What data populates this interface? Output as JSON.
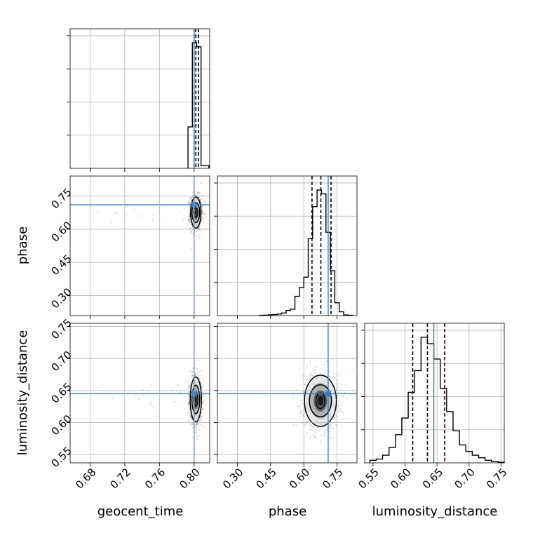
{
  "chart_data": {
    "type": "corner",
    "parameters": [
      {
        "name": "geocent_time",
        "label": "geocent_time",
        "ticks": [
          0.68,
          0.72,
          0.76,
          0.8
        ],
        "tick_labels": [
          "0.68",
          "0.72",
          "0.76",
          "0.80"
        ],
        "range": [
          0.657,
          0.818
        ],
        "truth": 0.8,
        "quantiles": [
          0.8,
          0.802,
          0.805
        ]
      },
      {
        "name": "phase",
        "label": "phase",
        "ticks": [
          0.3,
          0.45,
          0.6,
          0.75
        ],
        "tick_labels": [
          "0.30",
          "0.45",
          "0.60",
          "0.75"
        ],
        "range": [
          0.21,
          0.84
        ],
        "truth": 0.71,
        "quantiles": [
          0.637,
          0.677,
          0.723
        ]
      },
      {
        "name": "luminosity_distance",
        "label": "luminosity_distance",
        "ticks": [
          0.55,
          0.6,
          0.65,
          0.7,
          0.75
        ],
        "tick_labels": [
          "0.55",
          "0.60",
          "0.65",
          "0.70",
          "0.75"
        ],
        "range": [
          0.537,
          0.755
        ],
        "truth": 0.645,
        "quantiles": [
          0.612,
          0.635,
          0.662
        ]
      }
    ],
    "histograms": [
      {
        "parameter": "geocent_time",
        "bin_edges": [
          0.793,
          0.798,
          0.803,
          0.808,
          0.817
        ],
        "counts": [
          0.3,
          0.91,
          0.88,
          0.02
        ]
      },
      {
        "parameter": "phase",
        "bin_edges": [
          0.4,
          0.42,
          0.44,
          0.46,
          0.48,
          0.5,
          0.52,
          0.54,
          0.56,
          0.58,
          0.6,
          0.62,
          0.64,
          0.66,
          0.68,
          0.7,
          0.72,
          0.74,
          0.76,
          0.78,
          0.8,
          0.82
        ],
        "counts": [
          0.002,
          0.004,
          0.006,
          0.008,
          0.012,
          0.02,
          0.04,
          0.05,
          0.15,
          0.22,
          0.3,
          0.6,
          0.85,
          0.98,
          0.95,
          0.65,
          0.35,
          0.1,
          0.03,
          0.005,
          0.002
        ]
      },
      {
        "parameter": "luminosity_distance",
        "bin_edges": [
          0.545,
          0.555,
          0.565,
          0.575,
          0.585,
          0.595,
          0.605,
          0.615,
          0.625,
          0.635,
          0.645,
          0.655,
          0.665,
          0.675,
          0.685,
          0.695,
          0.705,
          0.715,
          0.725,
          0.735,
          0.745,
          0.755
        ],
        "counts": [
          0.02,
          0.03,
          0.06,
          0.12,
          0.22,
          0.35,
          0.55,
          0.72,
          0.98,
          0.93,
          0.81,
          0.58,
          0.4,
          0.25,
          0.14,
          0.09,
          0.06,
          0.04,
          0.02,
          0.01,
          0.005
        ]
      }
    ],
    "joint_contours": [
      {
        "x": "geocent_time",
        "y": "phase",
        "center": [
          0.802,
          0.675
        ],
        "radii_x": [
          0.0025,
          0.0045,
          0.006
        ],
        "radii_y": [
          0.02,
          0.045,
          0.07
        ]
      },
      {
        "x": "geocent_time",
        "y": "luminosity_distance",
        "center": [
          0.802,
          0.636
        ],
        "radii_x": [
          0.0025,
          0.0045,
          0.0065
        ],
        "radii_y": [
          0.01,
          0.022,
          0.035
        ]
      },
      {
        "x": "phase",
        "y": "luminosity_distance",
        "center": [
          0.675,
          0.634
        ],
        "radii_x": [
          0.02,
          0.05,
          0.072
        ],
        "radii_y": [
          0.012,
          0.025,
          0.04
        ]
      }
    ],
    "truth_color": "#3a7bbf",
    "hist_color": "#000000",
    "grid": true
  }
}
